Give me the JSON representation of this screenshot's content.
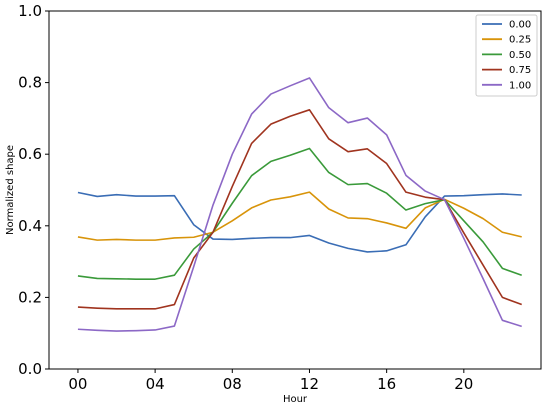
{
  "chart_data": {
    "type": "line",
    "title": "",
    "xlabel": "Hour",
    "ylabel": "Normalized shape",
    "x": [
      0,
      1,
      2,
      3,
      4,
      5,
      6,
      7,
      8,
      9,
      10,
      11,
      12,
      13,
      14,
      15,
      16,
      17,
      18,
      19,
      20,
      21,
      22,
      23
    ],
    "xlim": [
      -1.5,
      24
    ],
    "ylim": [
      0.0,
      1.0
    ],
    "x_ticks": [
      0,
      4,
      8,
      12,
      16,
      20
    ],
    "x_tick_labels": [
      "00",
      "04",
      "08",
      "12",
      "16",
      "20"
    ],
    "y_ticks": [
      0.0,
      0.2,
      0.4,
      0.6,
      0.8,
      1.0
    ],
    "y_tick_labels": [
      "0.0",
      "0.2",
      "0.4",
      "0.6",
      "0.8",
      "1.0"
    ],
    "grid": false,
    "legend_position": "top-right",
    "series": [
      {
        "name": "0.00",
        "color": "#3a6db5",
        "values": [
          0.493,
          0.482,
          0.487,
          0.483,
          0.483,
          0.484,
          0.403,
          0.363,
          0.362,
          0.365,
          0.367,
          0.367,
          0.373,
          0.352,
          0.337,
          0.327,
          0.33,
          0.347,
          0.425,
          0.483,
          0.484,
          0.487,
          0.489,
          0.486
        ]
      },
      {
        "name": "0.25",
        "color": "#d8940a",
        "values": [
          0.369,
          0.36,
          0.362,
          0.36,
          0.36,
          0.366,
          0.368,
          0.382,
          0.414,
          0.45,
          0.472,
          0.481,
          0.494,
          0.447,
          0.422,
          0.42,
          0.408,
          0.393,
          0.45,
          0.474,
          0.449,
          0.42,
          0.382,
          0.369
        ]
      },
      {
        "name": "0.50",
        "color": "#3a9a3a",
        "values": [
          0.26,
          0.253,
          0.252,
          0.251,
          0.251,
          0.262,
          0.335,
          0.382,
          0.463,
          0.54,
          0.58,
          0.597,
          0.616,
          0.549,
          0.515,
          0.518,
          0.491,
          0.444,
          0.462,
          0.473,
          0.414,
          0.355,
          0.281,
          0.262
        ]
      },
      {
        "name": "0.75",
        "color": "#a0341f",
        "values": [
          0.173,
          0.17,
          0.168,
          0.168,
          0.168,
          0.18,
          0.31,
          0.382,
          0.51,
          0.63,
          0.684,
          0.706,
          0.724,
          0.643,
          0.607,
          0.615,
          0.574,
          0.494,
          0.48,
          0.473,
          0.38,
          0.29,
          0.2,
          0.18
        ]
      },
      {
        "name": "1.00",
        "color": "#8c68c6",
        "values": [
          0.111,
          0.108,
          0.106,
          0.107,
          0.109,
          0.12,
          0.286,
          0.458,
          0.6,
          0.712,
          0.768,
          0.791,
          0.813,
          0.73,
          0.688,
          0.701,
          0.654,
          0.541,
          0.497,
          0.473,
          0.365,
          0.252,
          0.136,
          0.119
        ]
      }
    ]
  }
}
